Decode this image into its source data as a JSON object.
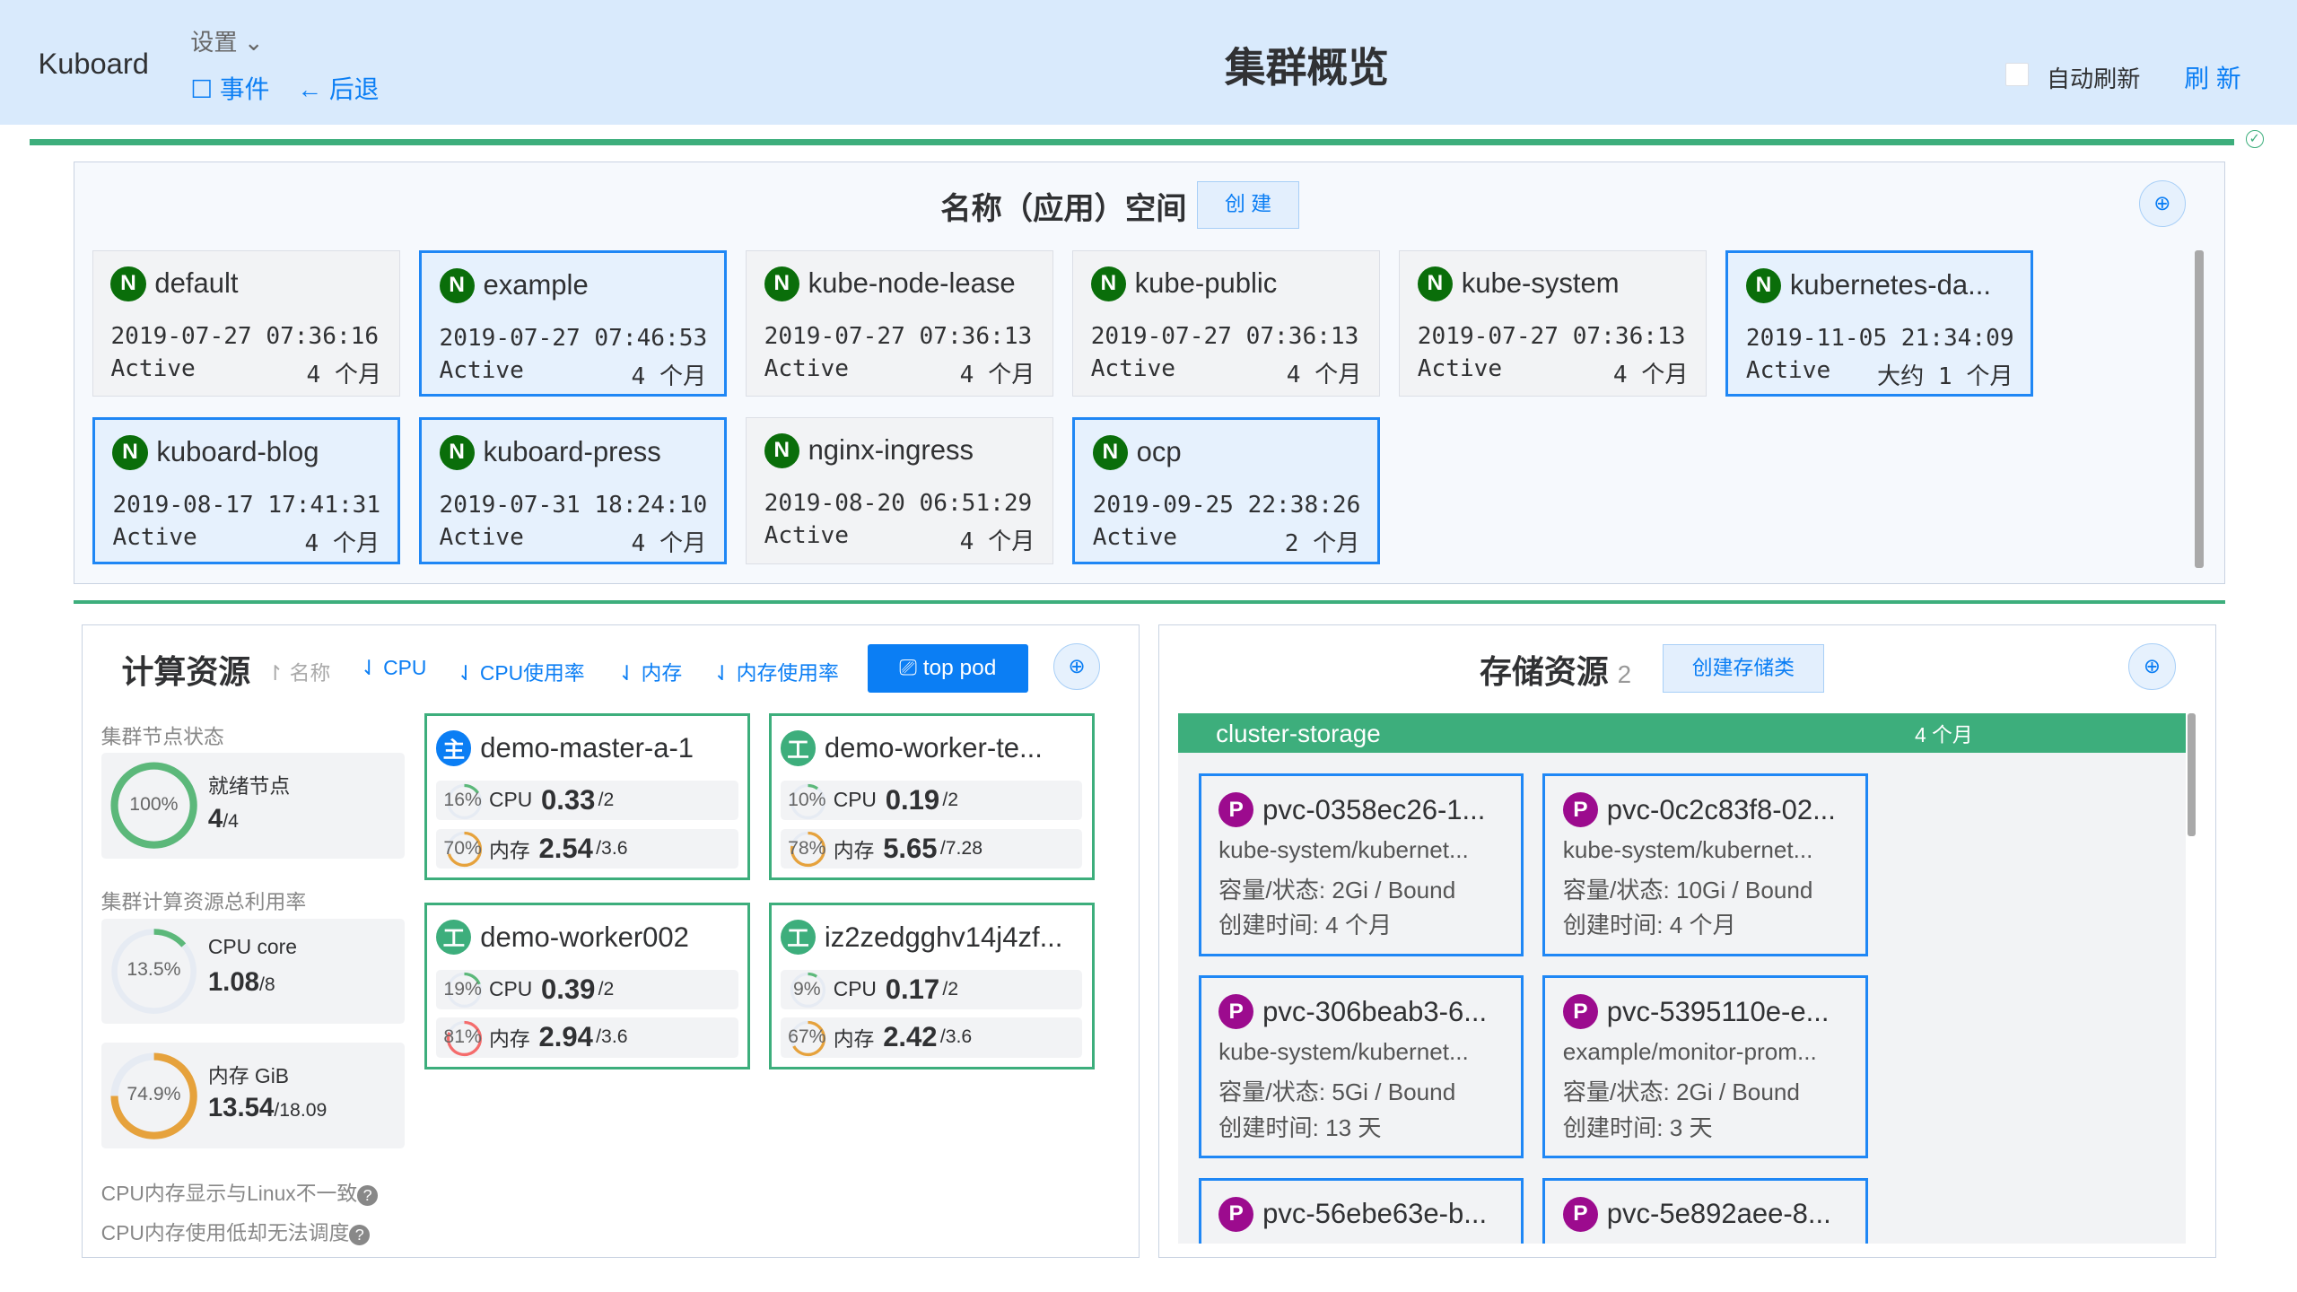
{
  "header": {
    "brand": "Kuboard",
    "settings": "设置",
    "events": "事件",
    "back": "后退",
    "title": "集群概览",
    "auto_refresh": "自动刷新",
    "refresh": "刷 新"
  },
  "colors": {
    "accent": "#0b7ef4",
    "green": "#3dae7c",
    "header_bg": "#d9eafc",
    "namespace_badge": "#0a6e0a",
    "pvc_badge": "#9c0b8e"
  },
  "namespaces": {
    "title": "名称（应用）空间",
    "create": "创 建",
    "items": [
      {
        "name": "default",
        "created": "2019-07-27 07:36:16",
        "status": "Active",
        "age": "4 个月",
        "selected": false
      },
      {
        "name": "example",
        "created": "2019-07-27 07:46:53",
        "status": "Active",
        "age": "4 个月",
        "selected": true
      },
      {
        "name": "kube-node-lease",
        "created": "2019-07-27 07:36:13",
        "status": "Active",
        "age": "4 个月",
        "selected": false
      },
      {
        "name": "kube-public",
        "created": "2019-07-27 07:36:13",
        "status": "Active",
        "age": "4 个月",
        "selected": false
      },
      {
        "name": "kube-system",
        "created": "2019-07-27 07:36:13",
        "status": "Active",
        "age": "4 个月",
        "selected": false
      },
      {
        "name": "kubernetes-da...",
        "created": "2019-11-05 21:34:09",
        "status": "Active",
        "age": "大约 1 个月",
        "selected": true
      },
      {
        "name": "kuboard-blog",
        "created": "2019-08-17 17:41:31",
        "status": "Active",
        "age": "4 个月",
        "selected": true
      },
      {
        "name": "kuboard-press",
        "created": "2019-07-31 18:24:10",
        "status": "Active",
        "age": "4 个月",
        "selected": true
      },
      {
        "name": "nginx-ingress",
        "created": "2019-08-20 06:51:29",
        "status": "Active",
        "age": "4 个月",
        "selected": false
      },
      {
        "name": "ocp",
        "created": "2019-09-25 22:38:26",
        "status": "Active",
        "age": "2 个月",
        "selected": true
      }
    ]
  },
  "compute": {
    "title": "计算资源",
    "sort": [
      "名称",
      "CPU",
      "CPU使用率",
      "内存",
      "内存使用率"
    ],
    "top_pod": "top pod",
    "node_status_label": "集群节点状态",
    "ready_label": "就绪节点",
    "ready_pct": "100%",
    "ready_value": "4",
    "ready_total": "/4",
    "usage_label": "集群计算资源总利用率",
    "cpu_label": "CPU core",
    "cpu_pct": "13.5%",
    "cpu_value": "1.08",
    "cpu_total": "/8",
    "mem_label": "内存 GiB",
    "mem_pct": "74.9%",
    "mem_value": "13.54",
    "mem_total": "/18.09",
    "note1": "CPU内存显示与Linux不一致",
    "note2": "CPU内存使用低却无法调度",
    "nodes": [
      {
        "badge": "主",
        "name": "demo-master-a-1",
        "cpu_pct": "16%",
        "cpu": "0.33",
        "cpu_total": "/2",
        "mem_pct": "70%",
        "mem": "2.54",
        "mem_total": "/3.6",
        "master": true
      },
      {
        "badge": "工",
        "name": "demo-worker-te...",
        "cpu_pct": "10%",
        "cpu": "0.19",
        "cpu_total": "/2",
        "mem_pct": "78%",
        "mem": "5.65",
        "mem_total": "/7.28",
        "master": false
      },
      {
        "badge": "工",
        "name": "demo-worker002",
        "cpu_pct": "19%",
        "cpu": "0.39",
        "cpu_total": "/2",
        "mem_pct": "81%",
        "mem": "2.94",
        "mem_total": "/3.6",
        "master": false
      },
      {
        "badge": "工",
        "name": "iz2zedgghv14j4zf...",
        "cpu_pct": "9%",
        "cpu": "0.17",
        "cpu_total": "/2",
        "mem_pct": "67%",
        "mem": "2.42",
        "mem_total": "/3.6",
        "master": false
      }
    ],
    "cpu_word": "CPU",
    "mem_word": "内存"
  },
  "storage": {
    "title": "存储资源",
    "count": "2",
    "create": "创建存储类",
    "class_name": "cluster-storage",
    "class_age": "4 个月",
    "pvcs": [
      {
        "name": "pvc-0358ec26-1...",
        "ns": "kube-system/kubernet...",
        "cap": "容量/状态: 2Gi / Bound",
        "age": "创建时间:  4 个月"
      },
      {
        "name": "pvc-0c2c83f8-02...",
        "ns": "kube-system/kubernet...",
        "cap": "容量/状态: 10Gi / Bound",
        "age": "创建时间:  4 个月"
      },
      {
        "name": "pvc-306beab3-6...",
        "ns": "kube-system/kubernet...",
        "cap": "容量/状态: 5Gi / Bound",
        "age": "创建时间:  13 天"
      },
      {
        "name": "pvc-5395110e-e...",
        "ns": "example/monitor-prom...",
        "cap": "容量/状态: 2Gi / Bound",
        "age": "创建时间:  3 天"
      },
      {
        "name": "pvc-56ebe63e-b...",
        "ns": "",
        "cap": "",
        "age": ""
      },
      {
        "name": "pvc-5e892aee-8...",
        "ns": "",
        "cap": "",
        "age": ""
      }
    ]
  }
}
